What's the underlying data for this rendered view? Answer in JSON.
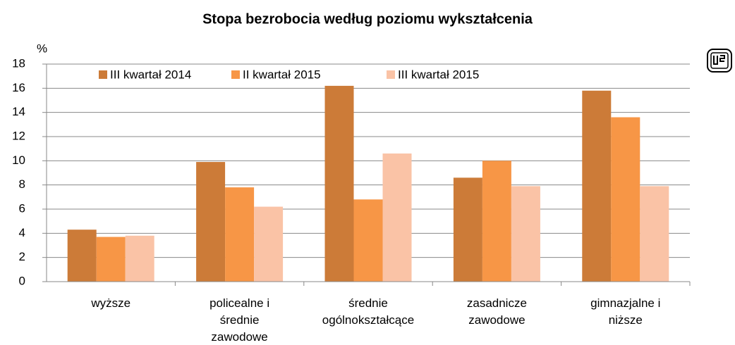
{
  "chart_data": {
    "type": "bar",
    "title": "Stopa bezrobocia według poziomu wykształcenia",
    "y_axis_label": "%",
    "categories": [
      [
        "wyższe"
      ],
      [
        "policealne i",
        "średnie",
        "zawodowe"
      ],
      [
        "średnie",
        "ogólnokształcące"
      ],
      [
        "zasadnicze",
        "zawodowe"
      ],
      [
        "gimnazjalne i",
        "niższe"
      ]
    ],
    "series": [
      {
        "name": "III kwartał 2014",
        "color": "#cc7b38",
        "values": [
          4.3,
          9.9,
          16.2,
          8.6,
          15.8
        ]
      },
      {
        "name": "II kwartał 2015",
        "color": "#f79646",
        "values": [
          3.7,
          7.8,
          6.8,
          10.0,
          13.6
        ]
      },
      {
        "name": "III kwartał 2015",
        "color": "#fac3a6",
        "values": [
          3.8,
          6.2,
          10.6,
          7.9,
          7.9
        ]
      }
    ],
    "ylim": [
      0,
      18
    ],
    "yticks": [
      0,
      2,
      4,
      6,
      8,
      10,
      12,
      14,
      16,
      18
    ],
    "grid": true,
    "legend": "top"
  }
}
